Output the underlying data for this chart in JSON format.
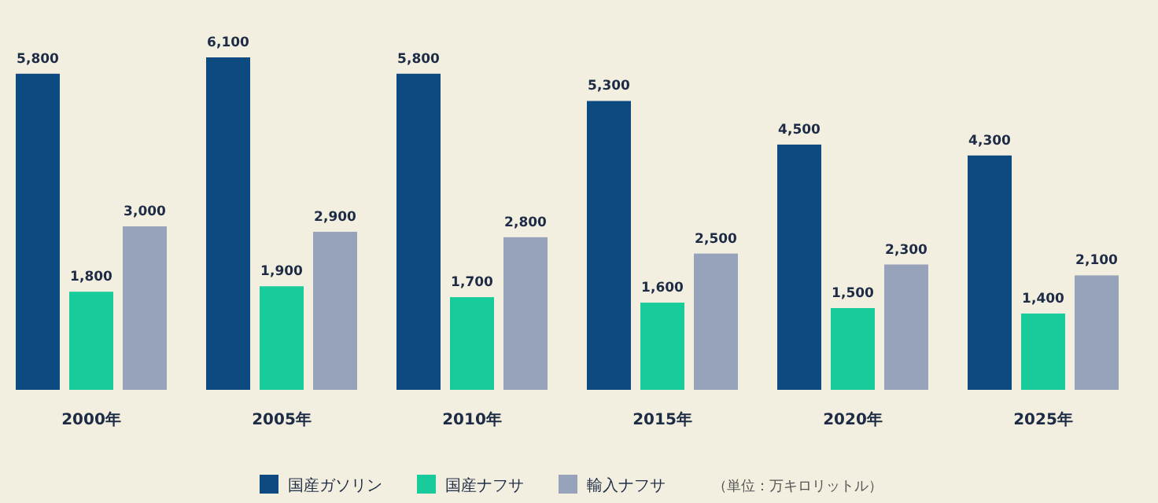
{
  "chart_data": {
    "type": "bar",
    "categories": [
      "2000年",
      "2005年",
      "2010年",
      "2015年",
      "2020年",
      "2025年"
    ],
    "series": [
      {
        "name": "国産ガソリン",
        "color": "#0d4a80",
        "values": [
          5800,
          6100,
          5800,
          5300,
          4500,
          4300
        ],
        "value_labels": [
          "5,800",
          "6,100",
          "5,800",
          "5,300",
          "4,500",
          "4,300"
        ]
      },
      {
        "name": "国産ナフサ",
        "color": "#17cc9a",
        "values": [
          1800,
          1900,
          1700,
          1600,
          1500,
          1400
        ],
        "value_labels": [
          "1,800",
          "1,900",
          "1,700",
          "1,600",
          "1,500",
          "1,400"
        ]
      },
      {
        "name": "輸入ナフサ",
        "color": "#96a3bb",
        "values": [
          3000,
          2900,
          2800,
          2500,
          2300,
          2100
        ],
        "value_labels": [
          "3,000",
          "2,900",
          "2,800",
          "2,500",
          "2,300",
          "2,100"
        ]
      }
    ],
    "legend": "bottom",
    "annotations": [
      "（単位：万キロリットル）"
    ]
  }
}
